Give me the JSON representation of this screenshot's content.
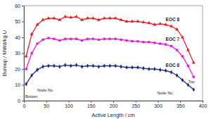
{
  "chart_data": {
    "type": "line",
    "x_label": "Active Length / cm",
    "y_label": "Burnup / MWd/kg U",
    "x": [
      5,
      17.5,
      30,
      42.5,
      55,
      67.5,
      80,
      92.5,
      105,
      117.5,
      130,
      142.5,
      155,
      167.5,
      180,
      192.5,
      205,
      217.5,
      230,
      242.5,
      255,
      267.5,
      280,
      292.5,
      305,
      317.5,
      330,
      342.5,
      355,
      367.5,
      380
    ],
    "xlim": [
      0,
      400
    ],
    "xticks": [
      0,
      50,
      100,
      150,
      200,
      250,
      300,
      350,
      400
    ],
    "ylim": [
      0,
      60
    ],
    "yticks": [
      0,
      10,
      20,
      30,
      40,
      50,
      60
    ],
    "grid": false,
    "series": [
      {
        "name": "EOC 8",
        "color": "#e0242a",
        "marker": "triangle",
        "values": [
          28,
          42,
          48,
          51,
          52,
          52,
          51,
          53,
          52.5,
          53,
          51,
          52,
          52,
          51,
          52,
          52,
          52,
          51,
          50,
          50,
          50,
          49.5,
          49,
          48,
          48.5,
          48,
          47,
          45,
          40,
          32,
          24
        ]
      },
      {
        "name": "EOC 7",
        "color": "#e020d8",
        "marker": "square",
        "values": [
          20,
          30,
          36,
          38.5,
          39.5,
          39,
          38,
          39,
          39,
          39,
          38,
          39,
          39,
          38.5,
          39,
          39,
          39,
          38.5,
          38,
          37.5,
          37.5,
          37,
          37,
          36.5,
          36,
          35.5,
          34.5,
          32,
          28,
          22,
          15
        ]
      },
      {
        "name": "EOC 6",
        "color": "#1c2a80",
        "marker": "diamond",
        "values": [
          10.5,
          16,
          19.5,
          21.5,
          22,
          22,
          21.5,
          22.5,
          22,
          22.5,
          21.5,
          22,
          22,
          21.5,
          22,
          22,
          22,
          21.5,
          21,
          21,
          21,
          20.5,
          20,
          20,
          19.5,
          19,
          18,
          16,
          13,
          10,
          7
        ]
      }
    ],
    "annotations": [
      {
        "text": "Bottom",
        "x": 3,
        "y": 2
      },
      {
        "text": "Node No.",
        "x": 30,
        "y": 6
      },
      {
        "text": "Node No.",
        "x": 335,
        "y": 4
      },
      {
        "text": "Top",
        "x": 382,
        "y": 11
      }
    ]
  }
}
